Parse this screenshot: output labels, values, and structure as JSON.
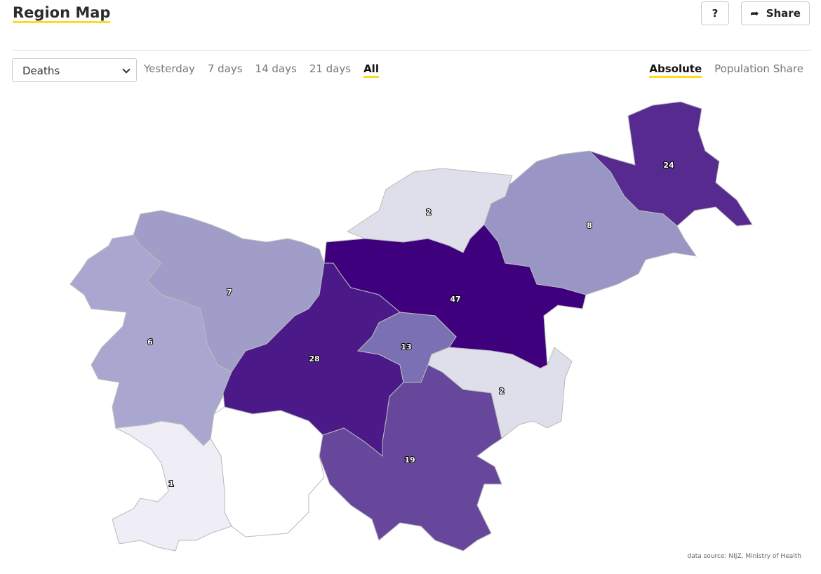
{
  "header": {
    "title": "Region Map",
    "help": "?",
    "share": "Share"
  },
  "controls": {
    "select": "Deaths",
    "periods": [
      "Yesterday",
      "7 days",
      "14 days",
      "21 days",
      "All"
    ],
    "active_period": 4,
    "modes": [
      "Absolute",
      "Population Share"
    ],
    "active_mode": 0
  },
  "regions": [
    {
      "value": 24,
      "color": "#562a8f"
    },
    {
      "value": 8,
      "color": "#9995c4"
    },
    {
      "value": 2,
      "color": "#dfdfeb"
    },
    {
      "value": 47,
      "color": "#3f007d"
    },
    {
      "value": 7,
      "color": "#a09dc9"
    },
    {
      "value": 6,
      "color": "#a9a7cf"
    },
    {
      "value": 28,
      "color": "#4b1a88"
    },
    {
      "value": 13,
      "color": "#7a70b3"
    },
    {
      "value": 2,
      "color": "#dfdfeb"
    },
    {
      "value": 19,
      "color": "#66479c"
    },
    {
      "color": "#ffffff"
    },
    {
      "value": 1,
      "color": "#efedf5"
    }
  ],
  "footer": {
    "source": "data source: NIJZ, Ministry of Health"
  }
}
